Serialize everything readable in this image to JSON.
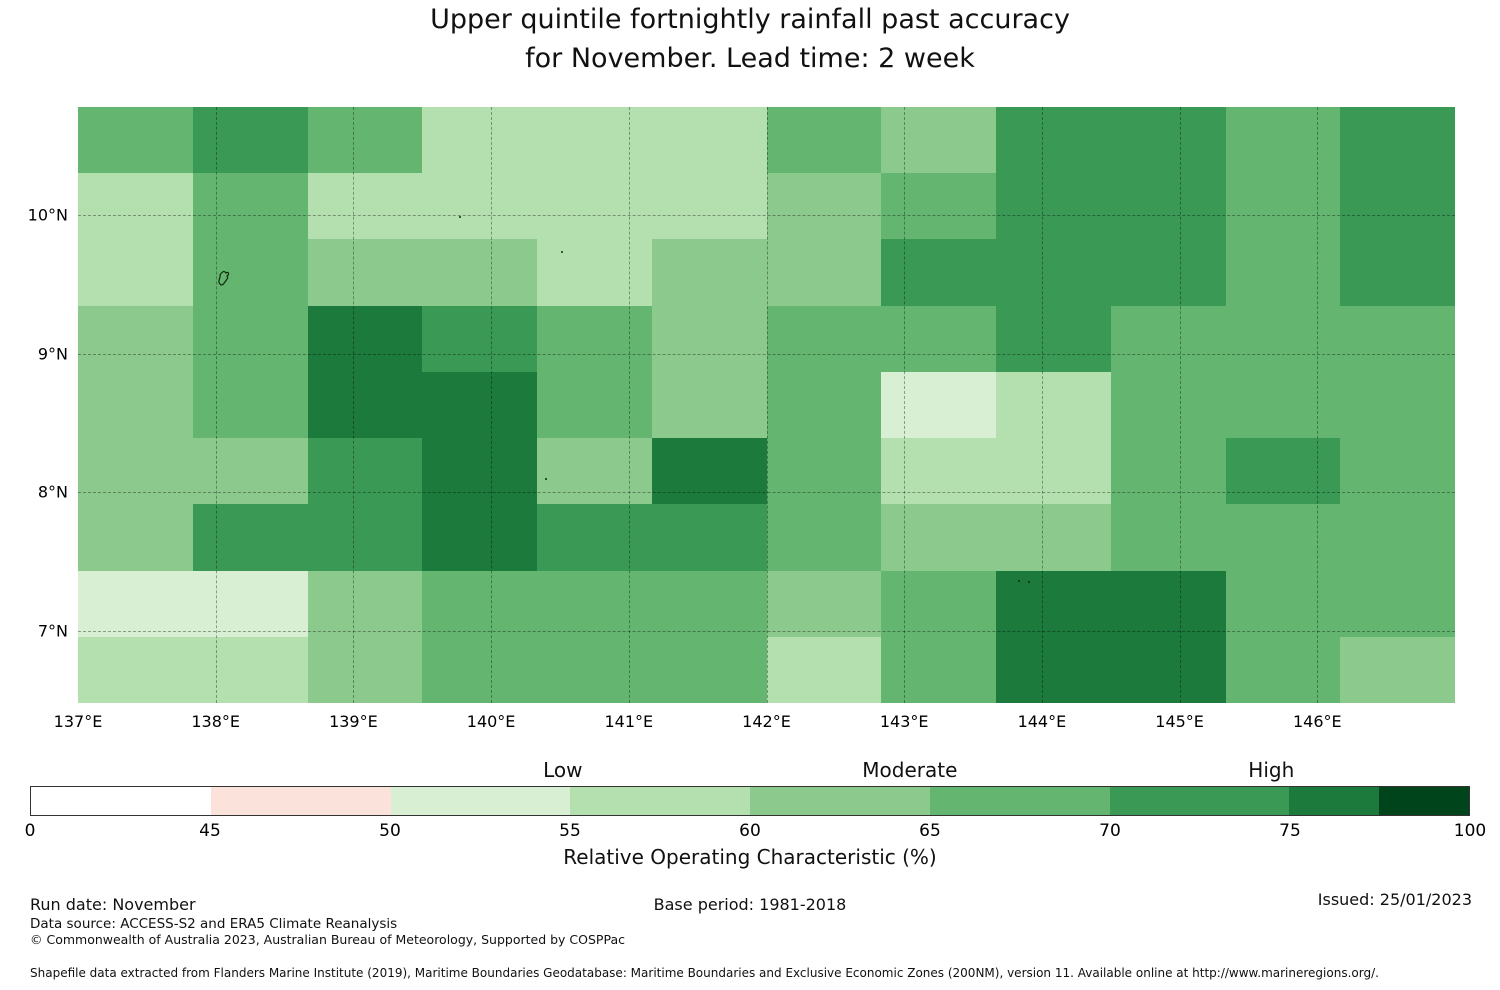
{
  "title": {
    "line1": "Upper quintile fortnightly rainfall past accuracy",
    "line2": "for November. Lead time: 2 week"
  },
  "chart_data": {
    "type": "heatmap",
    "x_range": [
      137,
      147
    ],
    "y_range": [
      6.48,
      10.78
    ],
    "x_ticks": [
      {
        "label": "137°E",
        "lon": 137
      },
      {
        "label": "138°E",
        "lon": 138
      },
      {
        "label": "139°E",
        "lon": 139
      },
      {
        "label": "140°E",
        "lon": 140
      },
      {
        "label": "141°E",
        "lon": 141
      },
      {
        "label": "142°E",
        "lon": 142
      },
      {
        "label": "143°E",
        "lon": 143
      },
      {
        "label": "144°E",
        "lon": 144
      },
      {
        "label": "145°E",
        "lon": 145
      },
      {
        "label": "146°E",
        "lon": 146
      }
    ],
    "y_ticks": [
      {
        "label": "10°N",
        "lat": 10
      },
      {
        "label": "9°N",
        "lat": 9
      },
      {
        "label": "8°N",
        "lat": 8
      },
      {
        "label": "7°N",
        "lat": 7
      }
    ],
    "x_gridlines": [
      138,
      139,
      140,
      141,
      142,
      143,
      144,
      145,
      146
    ],
    "y_gridlines": [
      10,
      9,
      8,
      7
    ],
    "grid": {
      "columns": 12,
      "rows": 9,
      "values": [
        [
          67,
          72,
          67,
          57,
          57,
          57,
          67,
          62,
          72,
          72,
          67,
          72
        ],
        [
          57,
          67,
          57,
          57,
          57,
          57,
          62,
          67,
          72,
          72,
          67,
          72
        ],
        [
          57,
          67,
          62,
          62,
          57,
          62,
          62,
          72,
          72,
          72,
          67,
          72
        ],
        [
          62,
          67,
          77,
          72,
          67,
          62,
          67,
          67,
          72,
          67,
          67,
          67
        ],
        [
          62,
          67,
          77,
          77,
          67,
          62,
          67,
          52,
          57,
          67,
          67,
          67
        ],
        [
          62,
          62,
          72,
          77,
          62,
          77,
          67,
          57,
          57,
          67,
          72,
          67
        ],
        [
          62,
          72,
          72,
          77,
          72,
          72,
          67,
          62,
          62,
          67,
          67,
          67
        ],
        [
          52,
          52,
          62,
          67,
          67,
          67,
          62,
          67,
          77,
          77,
          67,
          67
        ],
        [
          57,
          57,
          62,
          67,
          67,
          67,
          57,
          67,
          77,
          77,
          67,
          62
        ]
      ]
    },
    "color_scale": [
      {
        "max": 45,
        "color": "#ffffff"
      },
      {
        "max": 50,
        "color": "#fbe3db"
      },
      {
        "max": 55,
        "color": "#d8efd3"
      },
      {
        "max": 60,
        "color": "#b4dfaf"
      },
      {
        "max": 65,
        "color": "#8cc98c"
      },
      {
        "max": 70,
        "color": "#63b56f"
      },
      {
        "max": 75,
        "color": "#3a9a55"
      },
      {
        "max": 87.5,
        "color": "#1b7a3c"
      },
      {
        "max": 100,
        "color": "#00441b"
      }
    ],
    "colorbar": {
      "zone_labels": [
        {
          "label": "Low",
          "pos": 0.37
        },
        {
          "label": "Moderate",
          "pos": 0.611
        },
        {
          "label": "High",
          "pos": 0.862
        }
      ],
      "ticks": [
        {
          "label": "0",
          "pos": 0.0
        },
        {
          "label": "45",
          "pos": 0.125
        },
        {
          "label": "50",
          "pos": 0.25
        },
        {
          "label": "55",
          "pos": 0.375
        },
        {
          "label": "60",
          "pos": 0.5
        },
        {
          "label": "65",
          "pos": 0.625
        },
        {
          "label": "70",
          "pos": 0.75
        },
        {
          "label": "75",
          "pos": 0.875
        },
        {
          "label": "100",
          "pos": 1.0
        }
      ],
      "segments": [
        {
          "color": "#ffffff",
          "width": 1
        },
        {
          "color": "#fbe3db",
          "width": 1
        },
        {
          "color": "#d8efd3",
          "width": 1
        },
        {
          "color": "#b4dfaf",
          "width": 1
        },
        {
          "color": "#8cc98c",
          "width": 1
        },
        {
          "color": "#63b56f",
          "width": 1
        },
        {
          "color": "#3a9a55",
          "width": 1
        },
        {
          "color": "#1b7a3c",
          "width": 0.5
        },
        {
          "color": "#00441b",
          "width": 0.5
        }
      ],
      "axis_label": "Relative Operating Characteristic (%)"
    },
    "coast_marks": {
      "island": {
        "x_pct": 10.4,
        "y_pct": 28.2
      },
      "dots": [
        {
          "x_pct": 27.7,
          "y_pct": 18.3
        },
        {
          "x_pct": 35.1,
          "y_pct": 24.2
        },
        {
          "x_pct": 33.9,
          "y_pct": 62.2
        },
        {
          "x_pct": 68.3,
          "y_pct": 79.4
        },
        {
          "x_pct": 69.0,
          "y_pct": 79.6
        }
      ]
    }
  },
  "footer": {
    "run_date": "Run date: November",
    "base_period": "Base period: 1981-2018",
    "issued": "Issued: 25/01/2023",
    "data_source": "Data source: ACCESS-S2 and ERA5 Climate Reanalysis",
    "copyright": "© Commonwealth of Australia 2023, Australian Bureau of Meteorology, Supported by COSPPac",
    "shapefile_note": "Shapefile data extracted from Flanders Marine Institute (2019), Maritime Boundaries Geodatabase: Maritime Boundaries and Exclusive Economic Zones (200NM), version 11. Available online at http://www.marineregions.org/."
  }
}
